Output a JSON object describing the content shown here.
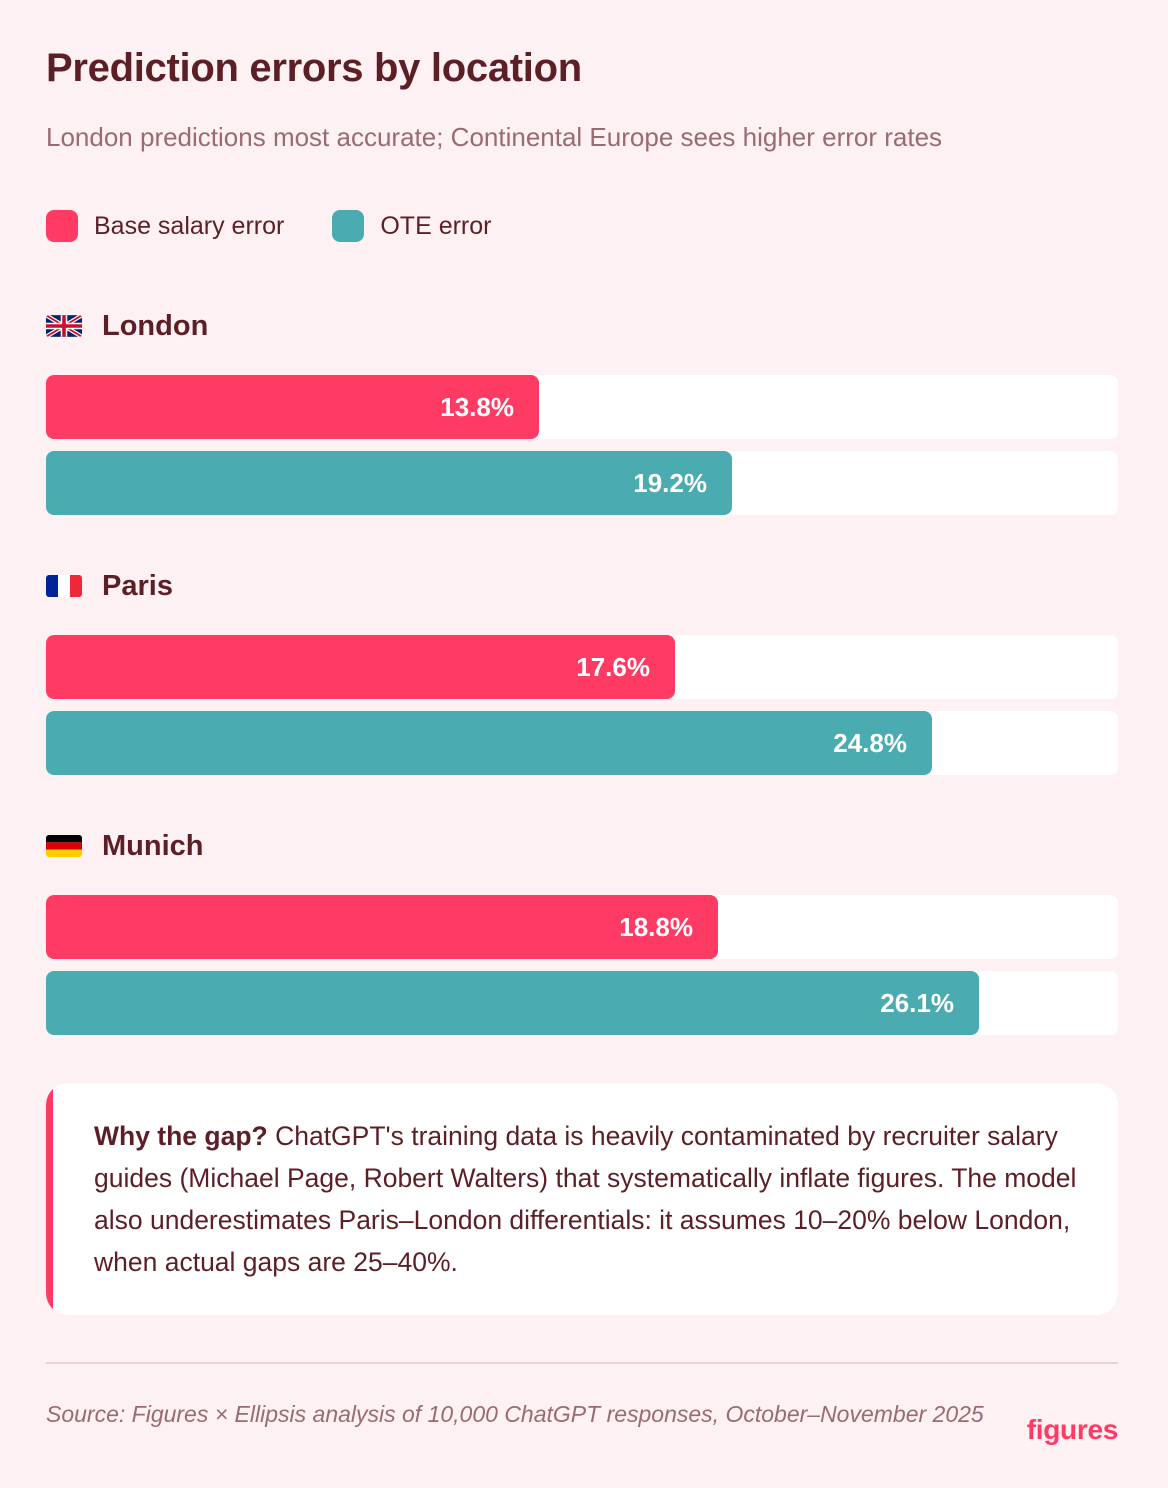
{
  "chart_data": {
    "type": "bar",
    "orientation": "horizontal",
    "title": "Prediction errors by location",
    "subtitle": "London predictions most accurate; Continental Europe sees higher error rates",
    "categories": [
      "London",
      "Paris",
      "Munich"
    ],
    "series": [
      {
        "name": "Base salary error",
        "color": "#ff3b63",
        "values": [
          13.8,
          17.6,
          18.8
        ],
        "labels": [
          "13.8%",
          "17.6%",
          "18.8%"
        ]
      },
      {
        "name": "OTE error",
        "color": "#4aabb0",
        "values": [
          19.2,
          24.8,
          26.1
        ],
        "labels": [
          "19.2%",
          "24.8%",
          "26.1%"
        ]
      }
    ],
    "xlim": [
      0,
      30
    ],
    "unit": "%",
    "legend_position": "top-left",
    "grid": false
  },
  "groups": [
    {
      "name": "London",
      "flag": "uk-flag-icon"
    },
    {
      "name": "Paris",
      "flag": "france-flag-icon"
    },
    {
      "name": "Munich",
      "flag": "germany-flag-icon"
    }
  ],
  "callout": {
    "lead": "Why the gap?",
    "body": " ChatGPT's training data is heavily contaminated by recruiter salary guides (Michael Page, Robert Walters) that systematically inflate figures. The model also underestimates Paris–London differentials: it assumes 10–20% below London, when actual gaps are 25–40%."
  },
  "source": "Source: Figures × Ellipsis analysis of 10,000 ChatGPT responses, October–November 2025",
  "brand": "figures",
  "colors": {
    "background": "#fdf1f3",
    "text": "#5c1f26",
    "muted": "#9a6b70",
    "accent": "#ff3b63",
    "teal": "#4aabb0"
  }
}
